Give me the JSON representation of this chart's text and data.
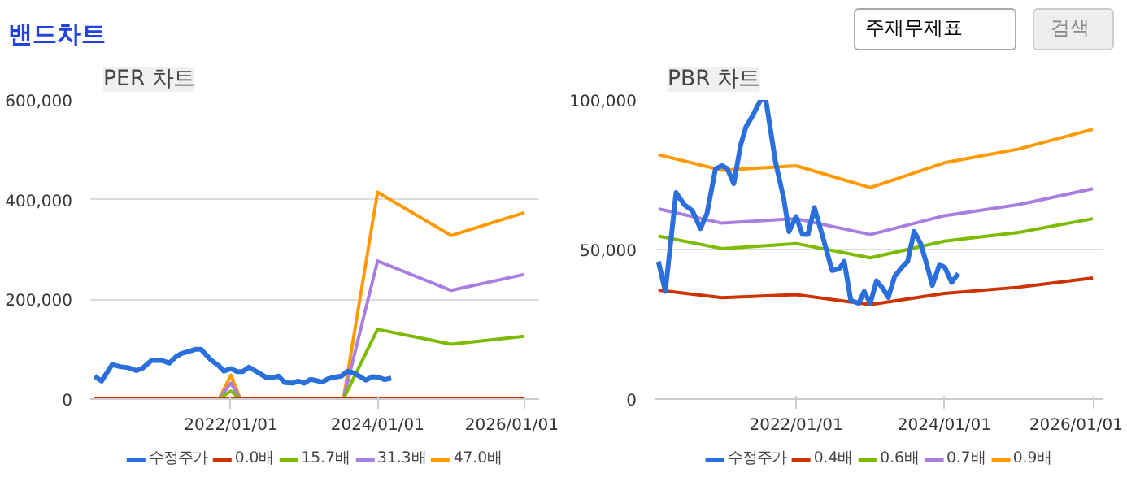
{
  "chart_data": [
    {
      "type": "line",
      "title": "PER 차트",
      "annotations": [
        "밴드차트"
      ],
      "grid": "y",
      "legend": "bottom",
      "marker": "none",
      "line_style": "solid",
      "xlim": [
        "2020-02-01",
        "2026-03-15"
      ],
      "xticks": [
        {
          "value": "2022-01-01",
          "label": "2022/01/01"
        },
        {
          "value": "2024-01-01",
          "label": "2024/01/01"
        },
        {
          "value": "2026-01-01",
          "label": "2026/01/01"
        }
      ],
      "ylim": [
        0,
        600000
      ],
      "yticks": [
        {
          "value": 0,
          "label": "0"
        },
        {
          "value": 200000,
          "label": "200,000"
        },
        {
          "value": 400000,
          "label": "400,000"
        },
        {
          "value": 600000,
          "label": "600,000"
        }
      ],
      "series": [
        {
          "name": "수정주가",
          "color": "#2a6fdb",
          "x": [
            "2020-02-23",
            "2020-03-28",
            "2020-05-20",
            "2020-06-29",
            "2020-08-08",
            "2020-09-17",
            "2020-10-19",
            "2020-11-30",
            "2021-01-01",
            "2021-01-27",
            "2021-02-28",
            "2021-04-03",
            "2021-04-29",
            "2021-06-03",
            "2021-07-10",
            "2021-08-05",
            "2021-09-22",
            "2021-11-01",
            "2021-11-27",
            "2022-01-01",
            "2022-02-01",
            "2022-02-28",
            "2022-04-01",
            "2022-05-13",
            "2022-06-27",
            "2022-07-31",
            "2022-08-26",
            "2022-09-27",
            "2022-11-05",
            "2022-12-02",
            "2023-01-01",
            "2023-02-01",
            "2023-03-04",
            "2023-03-31",
            "2023-05-01",
            "2023-06-05",
            "2023-07-04",
            "2023-08-05",
            "2023-09-06",
            "2023-10-02",
            "2023-11-03",
            "2023-12-08",
            "2024-01-03",
            "2024-02-06",
            "2024-03-09"
          ],
          "values": [
            46000,
            36000,
            69000,
            65000,
            63000,
            57000,
            62000,
            77000,
            78000,
            77000,
            72000,
            85000,
            91000,
            95000,
            100000,
            100000,
            79000,
            67000,
            56000,
            61000,
            55000,
            55000,
            64000,
            54000,
            43000,
            43500,
            46000,
            33000,
            32000,
            36000,
            32000,
            39500,
            37000,
            34000,
            41000,
            44000,
            46000,
            56000,
            52000,
            46000,
            38000,
            45000,
            44000,
            39000,
            42000
          ]
        },
        {
          "name": "0.0배",
          "color": "#cc3300",
          "x": [
            "2020-02-23",
            "2021-11-03",
            "2022-01-01",
            "2022-02-17",
            "2023-07-15",
            "2024-01-01",
            "2025-01-01",
            "2026-01-01"
          ],
          "values": [
            0,
            0,
            0,
            0,
            0,
            0,
            0,
            0
          ]
        },
        {
          "name": "15.7배",
          "color": "#7cbb00",
          "x": [
            "2020-02-23",
            "2021-11-03",
            "2022-01-01",
            "2022-02-17",
            "2023-07-15",
            "2024-01-01",
            "2025-01-01",
            "2026-01-01"
          ],
          "values": [
            0,
            0,
            16000,
            0,
            0,
            140000,
            110000,
            126000
          ]
        },
        {
          "name": "31.3배",
          "color": "#a87ee0",
          "x": [
            "2020-02-23",
            "2021-11-03",
            "2022-01-01",
            "2022-02-17",
            "2023-07-15",
            "2024-01-01",
            "2025-01-01",
            "2026-01-01"
          ],
          "values": [
            0,
            0,
            32000,
            0,
            0,
            277000,
            218000,
            250000
          ]
        },
        {
          "name": "47.0배",
          "color": "#ff9900",
          "x": [
            "2020-02-23",
            "2021-11-03",
            "2022-01-01",
            "2022-02-17",
            "2023-07-15",
            "2024-01-01",
            "2025-01-01",
            "2026-01-01"
          ],
          "values": [
            0,
            0,
            48000,
            0,
            0,
            415000,
            328000,
            374000
          ]
        }
      ]
    },
    {
      "type": "line",
      "title": "PBR 차트",
      "annotations": [
        "주재무제표",
        "검색"
      ],
      "grid": "y",
      "legend": "bottom",
      "marker": "none",
      "line_style": "solid",
      "xlim": [
        "2020-02-04",
        "2026-02-22"
      ],
      "xticks": [
        {
          "value": "2022-01-01",
          "label": "2022/01/01"
        },
        {
          "value": "2024-01-01",
          "label": "2024/01/01"
        },
        {
          "value": "2026-01-01",
          "label": "2026/01/01"
        }
      ],
      "ylim": [
        0,
        100000
      ],
      "yticks": [
        {
          "value": 0,
          "label": "0"
        },
        {
          "value": 50000,
          "label": "50,000"
        },
        {
          "value": 100000,
          "label": "100,000"
        }
      ],
      "series": [
        {
          "name": "수정주가",
          "color": "#2a6fdb",
          "x": [
            "2020-02-23",
            "2020-03-28",
            "2020-05-20",
            "2020-06-29",
            "2020-08-08",
            "2020-09-17",
            "2020-10-19",
            "2020-11-30",
            "2021-01-01",
            "2021-01-27",
            "2021-02-28",
            "2021-04-03",
            "2021-04-29",
            "2021-06-03",
            "2021-07-10",
            "2021-08-05",
            "2021-09-22",
            "2021-11-01",
            "2021-11-27",
            "2022-01-01",
            "2022-02-01",
            "2022-02-28",
            "2022-04-01",
            "2022-05-13",
            "2022-06-27",
            "2022-07-31",
            "2022-08-26",
            "2022-09-27",
            "2022-11-05",
            "2022-12-02",
            "2023-01-01",
            "2023-02-01",
            "2023-03-04",
            "2023-03-31",
            "2023-05-01",
            "2023-06-05",
            "2023-07-04",
            "2023-08-05",
            "2023-09-06",
            "2023-10-02",
            "2023-11-03",
            "2023-12-08",
            "2024-01-03",
            "2024-02-06",
            "2024-03-09"
          ],
          "values": [
            46000,
            36000,
            69000,
            65000,
            63000,
            57000,
            62000,
            77000,
            78000,
            77000,
            72000,
            85000,
            91000,
            95000,
            100000,
            100000,
            79000,
            67000,
            56000,
            61000,
            55000,
            55000,
            64000,
            54000,
            43000,
            43500,
            46000,
            33000,
            32000,
            36000,
            32000,
            39500,
            37000,
            34000,
            41000,
            44000,
            46000,
            56000,
            52000,
            46000,
            38000,
            45000,
            44000,
            39000,
            42000
          ]
        },
        {
          "name": "0.4배",
          "color": "#cc3300",
          "x": [
            "2020-02-23",
            "2021-01-01",
            "2022-01-01",
            "2023-01-01",
            "2024-01-01",
            "2025-01-01",
            "2026-01-01"
          ],
          "values": [
            36400,
            33900,
            34900,
            31600,
            35300,
            37400,
            40500
          ]
        },
        {
          "name": "0.6배",
          "color": "#7cbb00",
          "x": [
            "2020-02-23",
            "2021-01-01",
            "2022-01-01",
            "2023-01-01",
            "2024-01-01",
            "2025-01-01",
            "2026-01-01"
          ],
          "values": [
            54500,
            50300,
            52000,
            47200,
            52800,
            55700,
            60300
          ]
        },
        {
          "name": "0.7배",
          "color": "#a87ee0",
          "x": [
            "2020-02-23",
            "2021-01-01",
            "2022-01-01",
            "2023-01-01",
            "2024-01-01",
            "2025-01-01",
            "2026-01-01"
          ],
          "values": [
            63600,
            58800,
            60300,
            55000,
            61300,
            65000,
            70300
          ]
        },
        {
          "name": "0.9배",
          "color": "#ff9900",
          "x": [
            "2020-02-23",
            "2021-01-01",
            "2022-01-01",
            "2023-01-01",
            "2024-01-01",
            "2025-01-01",
            "2026-01-01"
          ],
          "values": [
            81700,
            76500,
            78000,
            70700,
            79000,
            83600,
            90200
          ]
        }
      ]
    }
  ]
}
